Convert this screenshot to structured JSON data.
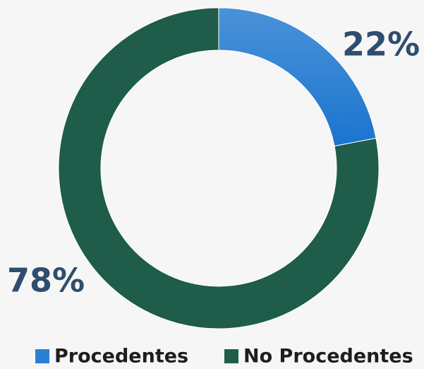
{
  "chart_data": {
    "type": "donut",
    "categories": [
      "Procedentes",
      "No Procedentes"
    ],
    "values": [
      22,
      78
    ],
    "value_labels": [
      "22%",
      "78%"
    ],
    "colors": [
      "#2a7fd4",
      "#1f5c4a"
    ],
    "legend": "bottom"
  }
}
